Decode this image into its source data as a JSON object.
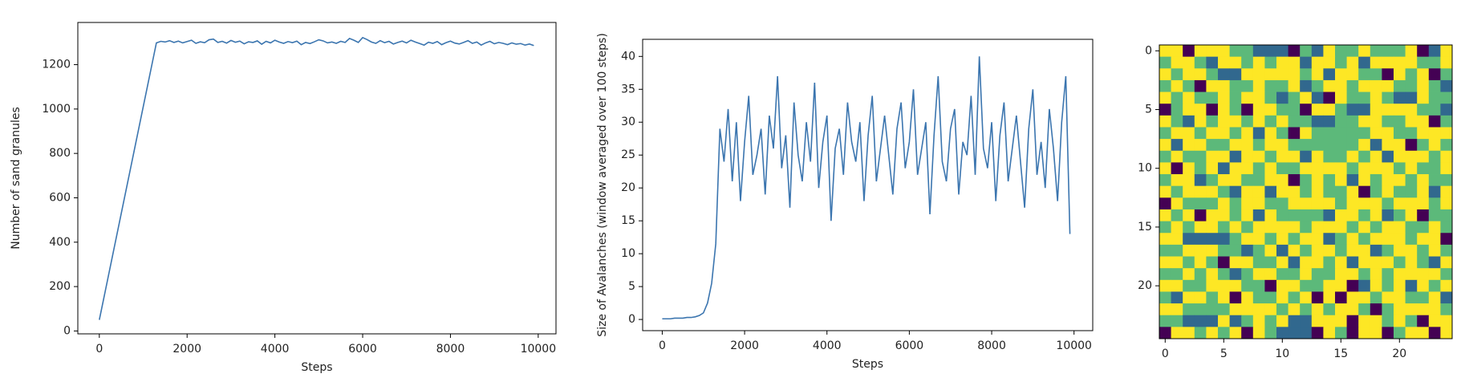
{
  "chart_data": [
    {
      "type": "line",
      "xlabel": "Steps",
      "ylabel": "Number of sand granules",
      "color": "#3b75af",
      "xlim": [
        -490,
        10405
      ],
      "ylim": [
        -13,
        1390
      ],
      "xticks": [
        0,
        2000,
        4000,
        6000,
        8000,
        10000
      ],
      "yticks": [
        0,
        200,
        400,
        600,
        800,
        1000,
        1200
      ],
      "x": [
        0,
        100,
        200,
        300,
        400,
        500,
        600,
        700,
        800,
        900,
        1000,
        1100,
        1200,
        1300,
        1400,
        1500,
        1600,
        1700,
        1800,
        1900,
        2000,
        2100,
        2200,
        2300,
        2400,
        2500,
        2600,
        2700,
        2800,
        2900,
        3000,
        3100,
        3200,
        3300,
        3400,
        3500,
        3600,
        3700,
        3800,
        3900,
        4000,
        4100,
        4200,
        4300,
        4400,
        4500,
        4600,
        4700,
        4800,
        4900,
        5000,
        5100,
        5200,
        5300,
        5400,
        5500,
        5600,
        5700,
        5800,
        5900,
        6000,
        6100,
        6200,
        6300,
        6400,
        6500,
        6600,
        6700,
        6800,
        6900,
        7000,
        7100,
        7200,
        7300,
        7400,
        7500,
        7600,
        7700,
        7800,
        7900,
        8000,
        8100,
        8200,
        8300,
        8400,
        8500,
        8600,
        8700,
        8800,
        8900,
        9000,
        9100,
        9200,
        9300,
        9400,
        9500,
        9600,
        9700,
        9800,
        9900
      ],
      "values": [
        50,
        146,
        242,
        338,
        434,
        530,
        626,
        722,
        818,
        914,
        1010,
        1106,
        1202,
        1298,
        1305,
        1302,
        1308,
        1300,
        1306,
        1298,
        1304,
        1310,
        1296,
        1303,
        1299,
        1312,
        1315,
        1300,
        1305,
        1297,
        1309,
        1301,
        1306,
        1294,
        1303,
        1300,
        1307,
        1292,
        1305,
        1298,
        1310,
        1302,
        1296,
        1304,
        1299,
        1306,
        1290,
        1300,
        1295,
        1303,
        1312,
        1307,
        1298,
        1302,
        1296,
        1305,
        1300,
        1318,
        1310,
        1300,
        1322,
        1313,
        1302,
        1296,
        1308,
        1299,
        1305,
        1293,
        1300,
        1306,
        1298,
        1310,
        1302,
        1295,
        1288,
        1301,
        1296,
        1304,
        1290,
        1299,
        1306,
        1297,
        1293,
        1300,
        1308,
        1296,
        1302,
        1288,
        1298,
        1305,
        1294,
        1300,
        1296,
        1290,
        1298,
        1292,
        1295,
        1288,
        1293,
        1286
      ]
    },
    {
      "type": "line",
      "xlabel": "Steps",
      "ylabel": "Size of Avalanches (window averaged over 100 steps)",
      "color": "#3b75af",
      "xlim": [
        -476,
        10454
      ],
      "ylim": [
        -1.7,
        42.6
      ],
      "xticks": [
        0,
        2000,
        4000,
        6000,
        8000,
        10000
      ],
      "yticks": [
        0,
        5,
        10,
        15,
        20,
        25,
        30,
        35,
        40
      ],
      "x": [
        0,
        100,
        200,
        300,
        400,
        500,
        600,
        700,
        800,
        900,
        1000,
        1100,
        1200,
        1300,
        1400,
        1500,
        1600,
        1700,
        1800,
        1900,
        2000,
        2100,
        2200,
        2300,
        2400,
        2500,
        2600,
        2700,
        2800,
        2900,
        3000,
        3100,
        3200,
        3300,
        3400,
        3500,
        3600,
        3700,
        3800,
        3900,
        4000,
        4100,
        4200,
        4300,
        4400,
        4500,
        4600,
        4700,
        4800,
        4900,
        5000,
        5100,
        5200,
        5300,
        5400,
        5500,
        5600,
        5700,
        5800,
        5900,
        6000,
        6100,
        6200,
        6300,
        6400,
        6500,
        6600,
        6700,
        6800,
        6900,
        7000,
        7100,
        7200,
        7300,
        7400,
        7500,
        7600,
        7700,
        7800,
        7900,
        8000,
        8100,
        8200,
        8300,
        8400,
        8500,
        8600,
        8700,
        8800,
        8900,
        9000,
        9100,
        9200,
        9300,
        9400,
        9500,
        9600,
        9700,
        9800,
        9900
      ],
      "values": [
        0.1,
        0.1,
        0.1,
        0.2,
        0.2,
        0.2,
        0.3,
        0.3,
        0.4,
        0.6,
        1.0,
        2.5,
        5.5,
        11.5,
        29,
        24,
        32,
        21,
        30,
        18,
        27,
        34,
        22,
        25,
        29,
        19,
        31,
        26,
        37,
        23,
        28,
        17,
        33,
        25,
        21,
        30,
        24,
        36,
        20,
        27,
        31,
        15,
        26,
        29,
        22,
        33,
        27,
        24,
        30,
        18,
        28,
        34,
        21,
        26,
        31,
        25,
        19,
        29,
        33,
        23,
        27,
        35,
        22,
        26,
        30,
        16,
        28,
        37,
        24,
        21,
        29,
        32,
        19,
        27,
        25,
        34,
        22,
        40,
        26,
        23,
        30,
        18,
        28,
        33,
        21,
        26,
        31,
        24,
        17,
        29,
        35,
        22,
        27,
        20,
        32,
        26,
        18,
        30,
        37,
        13
      ]
    },
    {
      "type": "heatmap",
      "colors": [
        "#440154",
        "#31688e",
        "#5cb97a",
        "#fde725"
      ],
      "xlim": [
        -0.5,
        24.5
      ],
      "ylim": [
        24.5,
        -0.5
      ],
      "xticks": [
        0,
        5,
        10,
        15,
        20
      ],
      "yticks": [
        0,
        5,
        10,
        15,
        20
      ],
      "z": [
        [
          3,
          3,
          0,
          3,
          3,
          3,
          2,
          2,
          1,
          1,
          1,
          0,
          2,
          1,
          3,
          2,
          2,
          3,
          2,
          2,
          2,
          3,
          0,
          1,
          3
        ],
        [
          2,
          3,
          3,
          2,
          1,
          3,
          3,
          2,
          3,
          2,
          3,
          3,
          1,
          3,
          3,
          2,
          3,
          1,
          3,
          3,
          3,
          3,
          2,
          2,
          3
        ],
        [
          3,
          2,
          3,
          3,
          2,
          1,
          1,
          3,
          3,
          3,
          3,
          3,
          2,
          3,
          1,
          3,
          3,
          2,
          2,
          0,
          3,
          2,
          3,
          0,
          2
        ],
        [
          2,
          3,
          2,
          0,
          3,
          3,
          2,
          2,
          3,
          2,
          2,
          3,
          1,
          2,
          3,
          3,
          2,
          3,
          3,
          3,
          2,
          2,
          3,
          2,
          1
        ],
        [
          3,
          2,
          3,
          2,
          2,
          3,
          2,
          3,
          3,
          2,
          1,
          2,
          3,
          1,
          0,
          3,
          2,
          2,
          3,
          2,
          1,
          1,
          3,
          2,
          2
        ],
        [
          0,
          2,
          3,
          3,
          0,
          3,
          2,
          0,
          3,
          3,
          2,
          2,
          0,
          3,
          3,
          2,
          1,
          1,
          3,
          3,
          3,
          3,
          2,
          2,
          1
        ],
        [
          3,
          2,
          1,
          3,
          2,
          3,
          3,
          2,
          3,
          2,
          3,
          2,
          2,
          1,
          1,
          2,
          2,
          3,
          3,
          2,
          2,
          3,
          3,
          0,
          2
        ],
        [
          2,
          3,
          3,
          2,
          3,
          3,
          2,
          3,
          1,
          3,
          2,
          0,
          3,
          2,
          2,
          2,
          2,
          2,
          3,
          3,
          2,
          2,
          3,
          3,
          3
        ],
        [
          3,
          1,
          3,
          3,
          2,
          2,
          3,
          3,
          2,
          3,
          3,
          2,
          2,
          2,
          2,
          2,
          2,
          3,
          1,
          3,
          3,
          0,
          2,
          3,
          2
        ],
        [
          2,
          3,
          2,
          2,
          3,
          3,
          1,
          3,
          3,
          2,
          3,
          3,
          1,
          3,
          2,
          2,
          3,
          2,
          3,
          1,
          3,
          3,
          3,
          2,
          3
        ],
        [
          3,
          0,
          3,
          2,
          3,
          1,
          3,
          3,
          2,
          3,
          2,
          2,
          3,
          3,
          3,
          3,
          2,
          3,
          3,
          3,
          2,
          3,
          2,
          2,
          3
        ],
        [
          2,
          3,
          3,
          1,
          2,
          3,
          3,
          2,
          2,
          3,
          3,
          0,
          2,
          3,
          2,
          3,
          1,
          3,
          2,
          3,
          3,
          2,
          3,
          2,
          2
        ],
        [
          3,
          2,
          3,
          3,
          3,
          2,
          1,
          3,
          3,
          1,
          3,
          3,
          2,
          3,
          2,
          2,
          3,
          0,
          2,
          3,
          2,
          2,
          3,
          1,
          3
        ],
        [
          0,
          3,
          2,
          2,
          2,
          3,
          2,
          3,
          3,
          2,
          2,
          3,
          3,
          3,
          3,
          2,
          3,
          3,
          3,
          2,
          3,
          3,
          3,
          2,
          3
        ],
        [
          3,
          2,
          3,
          0,
          3,
          3,
          2,
          3,
          1,
          3,
          2,
          2,
          2,
          2,
          1,
          3,
          3,
          2,
          3,
          1,
          2,
          3,
          0,
          2,
          2
        ],
        [
          2,
          3,
          2,
          3,
          3,
          2,
          3,
          2,
          3,
          3,
          3,
          3,
          2,
          3,
          3,
          3,
          2,
          3,
          2,
          3,
          3,
          2,
          2,
          3,
          2
        ],
        [
          3,
          3,
          1,
          1,
          1,
          1,
          2,
          3,
          3,
          2,
          3,
          2,
          3,
          3,
          1,
          2,
          3,
          2,
          3,
          3,
          3,
          2,
          3,
          3,
          0
        ],
        [
          2,
          2,
          3,
          3,
          3,
          2,
          2,
          1,
          2,
          3,
          1,
          3,
          2,
          3,
          3,
          2,
          3,
          3,
          1,
          2,
          3,
          3,
          2,
          3,
          2
        ],
        [
          3,
          3,
          2,
          3,
          2,
          0,
          3,
          3,
          2,
          2,
          3,
          1,
          3,
          3,
          2,
          3,
          1,
          3,
          3,
          3,
          2,
          3,
          2,
          1,
          3
        ],
        [
          2,
          2,
          3,
          2,
          3,
          2,
          1,
          2,
          3,
          3,
          2,
          2,
          3,
          2,
          2,
          3,
          3,
          2,
          3,
          2,
          3,
          3,
          3,
          3,
          2
        ],
        [
          3,
          3,
          2,
          2,
          3,
          3,
          3,
          2,
          2,
          0,
          3,
          3,
          2,
          2,
          3,
          3,
          0,
          1,
          3,
          2,
          3,
          1,
          3,
          2,
          3
        ],
        [
          2,
          1,
          3,
          3,
          2,
          3,
          0,
          3,
          2,
          2,
          3,
          2,
          3,
          0,
          3,
          0,
          3,
          3,
          2,
          3,
          3,
          2,
          2,
          3,
          1
        ],
        [
          3,
          3,
          2,
          2,
          2,
          2,
          3,
          3,
          3,
          3,
          2,
          3,
          2,
          3,
          2,
          3,
          3,
          2,
          0,
          2,
          3,
          3,
          3,
          3,
          2
        ],
        [
          2,
          2,
          1,
          1,
          1,
          3,
          1,
          2,
          3,
          2,
          3,
          1,
          1,
          3,
          3,
          3,
          0,
          3,
          3,
          2,
          3,
          2,
          0,
          3,
          3
        ],
        [
          0,
          3,
          3,
          2,
          3,
          2,
          3,
          0,
          3,
          2,
          1,
          1,
          1,
          0,
          3,
          2,
          0,
          3,
          3,
          0,
          2,
          3,
          3,
          0,
          3
        ]
      ]
    }
  ]
}
